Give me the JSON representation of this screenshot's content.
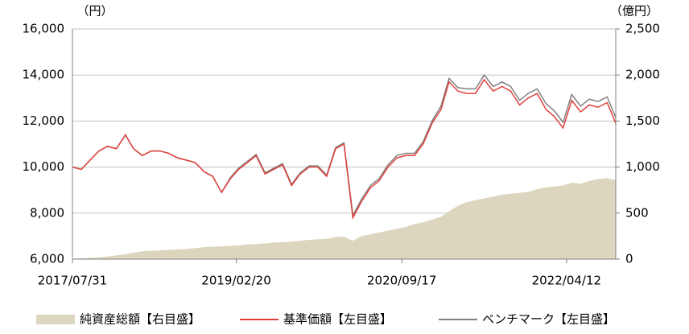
{
  "chart_data": {
    "type": "line",
    "y_unit": "（円）",
    "y2_unit": "（億円）",
    "x": [
      "2017/07/31",
      "2017/08/31",
      "2017/09/30",
      "2017/10/31",
      "2017/11/30",
      "2017/12/31",
      "2018/01/31",
      "2018/02/28",
      "2018/03/31",
      "2018/04/30",
      "2018/05/31",
      "2018/06/30",
      "2018/07/31",
      "2018/08/31",
      "2018/09/30",
      "2018/10/31",
      "2018/11/30",
      "2018/12/31",
      "2019/01/31",
      "2019/02/28",
      "2019/03/31",
      "2019/04/30",
      "2019/05/31",
      "2019/06/30",
      "2019/07/31",
      "2019/08/31",
      "2019/09/30",
      "2019/10/31",
      "2019/11/30",
      "2019/12/31",
      "2020/01/31",
      "2020/02/29",
      "2020/03/31",
      "2020/04/30",
      "2020/05/31",
      "2020/06/30",
      "2020/07/31",
      "2020/08/31",
      "2020/09/30",
      "2020/10/31",
      "2020/11/30",
      "2020/12/31",
      "2021/01/31",
      "2021/02/28",
      "2021/03/31",
      "2021/04/30",
      "2021/05/31",
      "2021/06/30",
      "2021/07/31",
      "2021/08/31",
      "2021/09/30",
      "2021/10/31",
      "2021/11/30",
      "2021/12/31",
      "2022/01/31",
      "2022/02/28",
      "2022/03/31",
      "2022/04/30",
      "2022/05/31",
      "2022/06/30",
      "2022/07/31",
      "2022/08/31",
      "2022/09/30"
    ],
    "xlim": [
      "2017/07/31",
      "2022/09/30"
    ],
    "xticks": [
      "2017/07/31",
      "2019/02/20",
      "2020/09/17",
      "2022/04/12"
    ],
    "ylim": [
      6000,
      16000
    ],
    "yticks": [
      {
        "value": 6000,
        "label": "6,000"
      },
      {
        "value": 8000,
        "label": "8,000"
      },
      {
        "value": 10000,
        "label": "10,000"
      },
      {
        "value": 12000,
        "label": "12,000"
      },
      {
        "value": 14000,
        "label": "14,000"
      },
      {
        "value": 16000,
        "label": "16,000"
      }
    ],
    "y2lim": [
      0,
      2500
    ],
    "y2ticks": [
      0,
      500,
      {
        "value": 1000,
        "label": "1,000"
      },
      {
        "value": 1500,
        "label": "1,500"
      },
      {
        "value": 2000,
        "label": "2,000"
      },
      {
        "value": 2500,
        "label": "2,500"
      }
    ],
    "grid": true,
    "series": [
      {
        "name": "純資産総額【右目盛】",
        "type": "area",
        "axis": "y2",
        "color": "#ddd6bf",
        "values": [
          5,
          10,
          15,
          20,
          30,
          40,
          55,
          70,
          85,
          90,
          95,
          100,
          105,
          110,
          120,
          130,
          135,
          140,
          145,
          150,
          160,
          165,
          170,
          180,
          185,
          190,
          200,
          210,
          215,
          220,
          240,
          245,
          200,
          250,
          270,
          290,
          310,
          330,
          350,
          380,
          400,
          430,
          460,
          520,
          580,
          620,
          640,
          660,
          680,
          700,
          710,
          720,
          730,
          760,
          780,
          790,
          800,
          830,
          820,
          850,
          870,
          880,
          860
        ]
      },
      {
        "name": "基準価額【左目盛】",
        "color": "#e0413c",
        "values": [
          10000,
          9900,
          10300,
          10700,
          10900,
          10800,
          11400,
          10800,
          10500,
          10700,
          10700,
          10600,
          10400,
          10300,
          10200,
          9800,
          9600,
          8900,
          9500,
          9900,
          10200,
          10500,
          9700,
          9900,
          10100,
          9200,
          9700,
          10000,
          10000,
          9600,
          10800,
          11000,
          7800,
          8500,
          9100,
          9400,
          10000,
          10400,
          10500,
          10500,
          11000,
          11900,
          12500,
          13700,
          13300,
          13200,
          13200,
          13800,
          13300,
          13500,
          13300,
          12700,
          13000,
          13200,
          12500,
          12200,
          11700,
          12900,
          12400,
          12700,
          12600,
          12800,
          11900
        ]
      },
      {
        "name": "ベンチマーク【左目盛】",
        "color": "#808080",
        "values": [
          10000,
          9900,
          10300,
          10700,
          10900,
          10800,
          11400,
          10800,
          10500,
          10700,
          10700,
          10600,
          10400,
          10300,
          10200,
          9800,
          9600,
          8900,
          9550,
          9950,
          10250,
          10550,
          9750,
          9950,
          10150,
          9250,
          9750,
          10050,
          10050,
          9650,
          10850,
          11050,
          7900,
          8600,
          9200,
          9500,
          10100,
          10500,
          10600,
          10600,
          11100,
          12000,
          12650,
          13850,
          13450,
          13400,
          13400,
          14000,
          13500,
          13700,
          13500,
          12900,
          13200,
          13400,
          12750,
          12450,
          11950,
          13150,
          12650,
          12950,
          12850,
          13050,
          12150
        ]
      }
    ]
  }
}
